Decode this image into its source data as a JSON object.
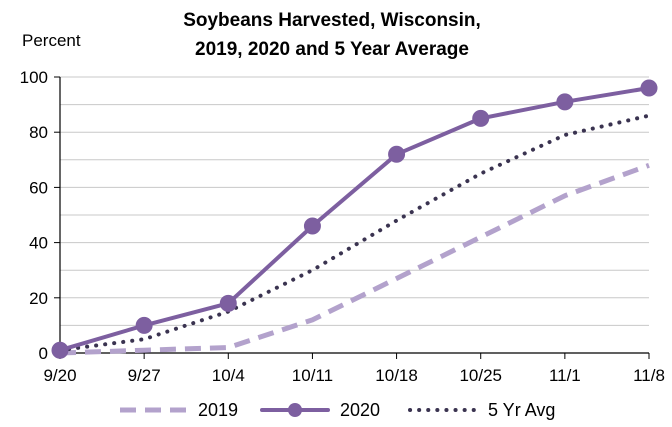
{
  "chart_data": {
    "type": "line",
    "title_line1": "Soybeans Harvested, Wisconsin,",
    "title_line2": "2019, 2020 and 5 Year Average",
    "ylabel": "Percent",
    "xlabel": "",
    "categories": [
      "9/20",
      "9/27",
      "10/4",
      "10/11",
      "10/18",
      "10/25",
      "11/1",
      "11/8"
    ],
    "ylim": [
      0,
      100
    ],
    "yticks": [
      0,
      20,
      40,
      60,
      80,
      100
    ],
    "grid": true,
    "legend_position": "bottom",
    "series": [
      {
        "name": "2019",
        "values": [
          0,
          1,
          2,
          12,
          27,
          42,
          57,
          68
        ],
        "color": "#b3a2cc",
        "style": "dashed",
        "markers": false
      },
      {
        "name": "2020",
        "values": [
          1,
          10,
          18,
          46,
          72,
          85,
          91,
          96
        ],
        "color": "#7d5fa0",
        "style": "solid",
        "markers": true
      },
      {
        "name": "5 Yr Avg",
        "values": [
          1,
          5,
          15,
          30,
          48,
          65,
          79,
          86
        ],
        "color": "#3a3350",
        "style": "dotted",
        "markers": false
      }
    ]
  }
}
